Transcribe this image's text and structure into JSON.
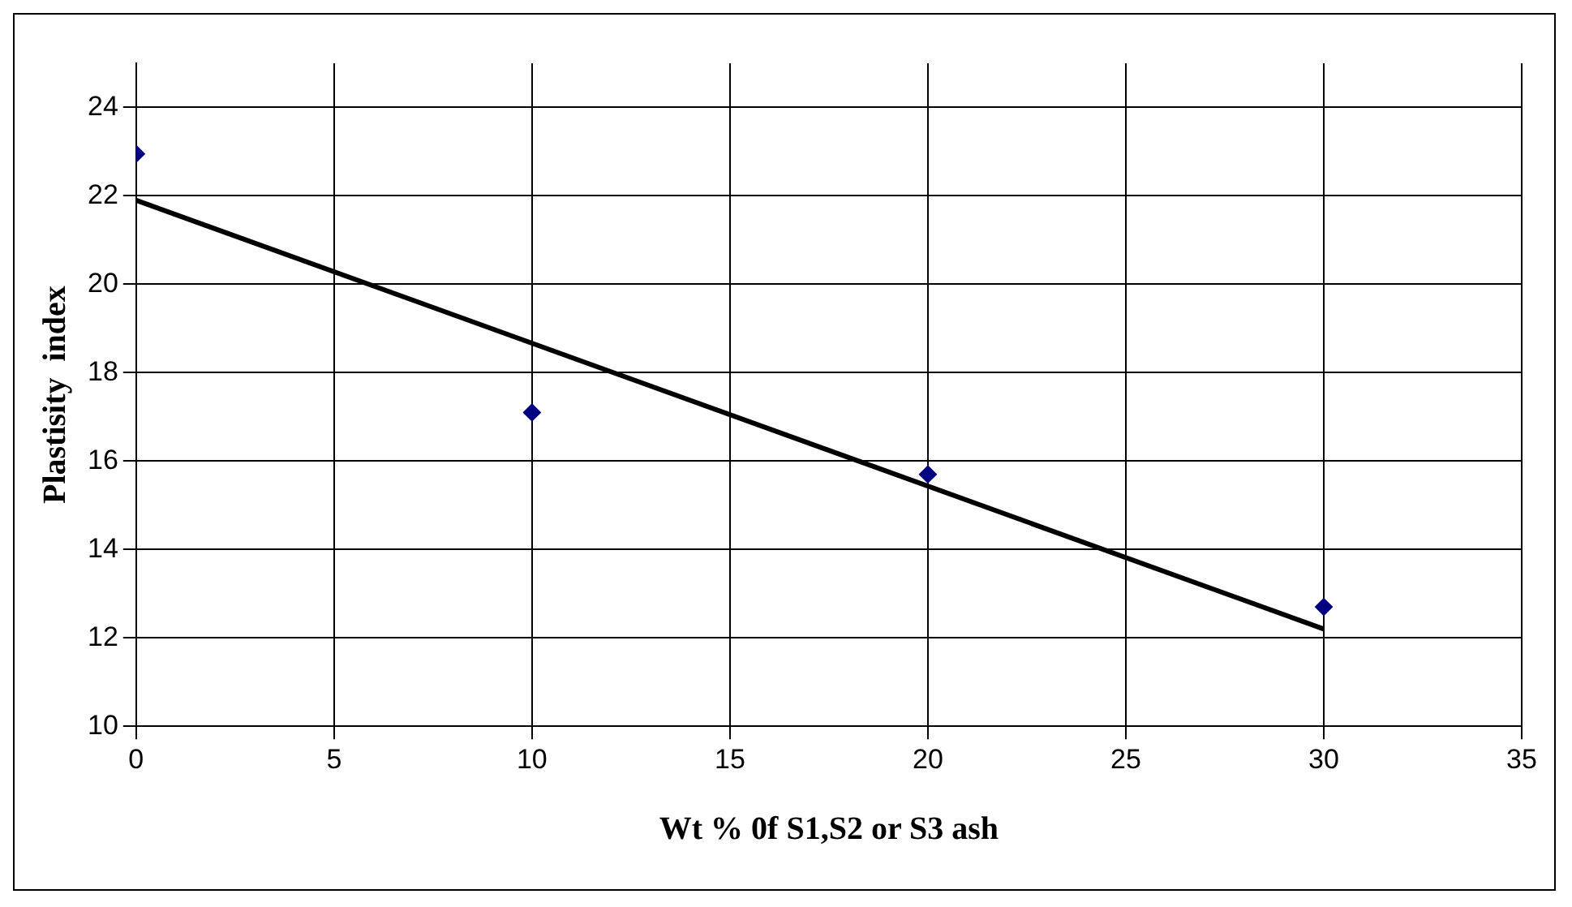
{
  "chart_data": {
    "type": "scatter",
    "xlabel": "Wt % 0f S1,S2 or S3 ash",
    "ylabel": "Plastisity  index",
    "x": [
      0,
      10,
      20,
      30
    ],
    "series": [
      {
        "type": "scatter",
        "color": "#000080",
        "values": [
          22.95,
          17.1,
          15.7,
          12.7
        ],
        "marker": "diamond"
      },
      {
        "type": "line",
        "color": "#000000",
        "x": [
          0,
          30
        ],
        "values": [
          21.9,
          12.2
        ],
        "marker": "none"
      }
    ],
    "xlim": [
      0,
      35
    ],
    "xticks": [
      0,
      5,
      10,
      15,
      20,
      25,
      30,
      35
    ],
    "ylim": [
      10,
      25
    ],
    "yticks": [
      10,
      12,
      14,
      16,
      18,
      20,
      22,
      24
    ],
    "grid": true,
    "legend": false
  }
}
